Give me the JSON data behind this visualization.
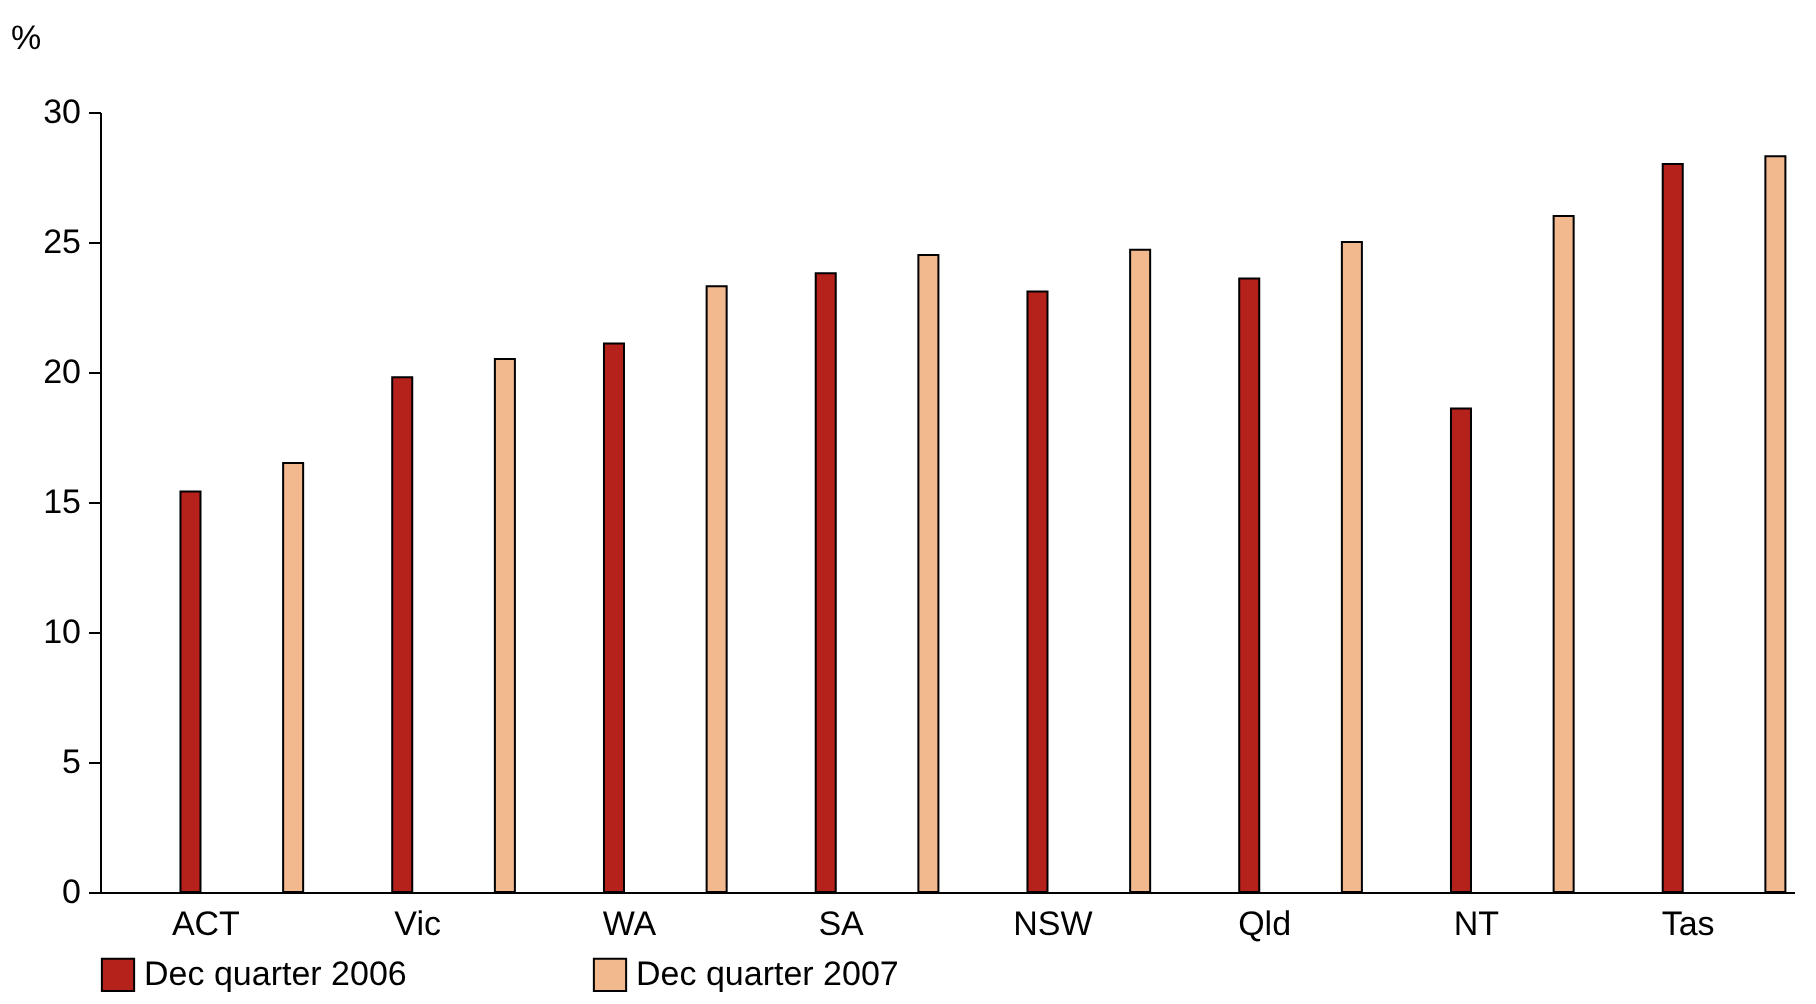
{
  "chart_data": {
    "type": "bar",
    "ylabel": "%",
    "categories": [
      "ACT",
      "Vic",
      "WA",
      "SA",
      "NSW",
      "Qld",
      "NT",
      "Tas"
    ],
    "series": [
      {
        "name": "Dec quarter 2006",
        "color": "#b5211b",
        "values": [
          15.4,
          19.8,
          21.1,
          23.8,
          23.1,
          23.6,
          18.6,
          28.0
        ]
      },
      {
        "name": "Dec quarter 2007",
        "color": "#f2b98f",
        "values": [
          16.5,
          20.5,
          23.3,
          24.5,
          24.7,
          25.0,
          26.0,
          28.3
        ]
      }
    ],
    "ylim": [
      0,
      30
    ],
    "yticks": [
      0,
      5,
      10,
      15,
      20,
      25,
      30
    ],
    "grid": false,
    "legend": "bottom"
  }
}
